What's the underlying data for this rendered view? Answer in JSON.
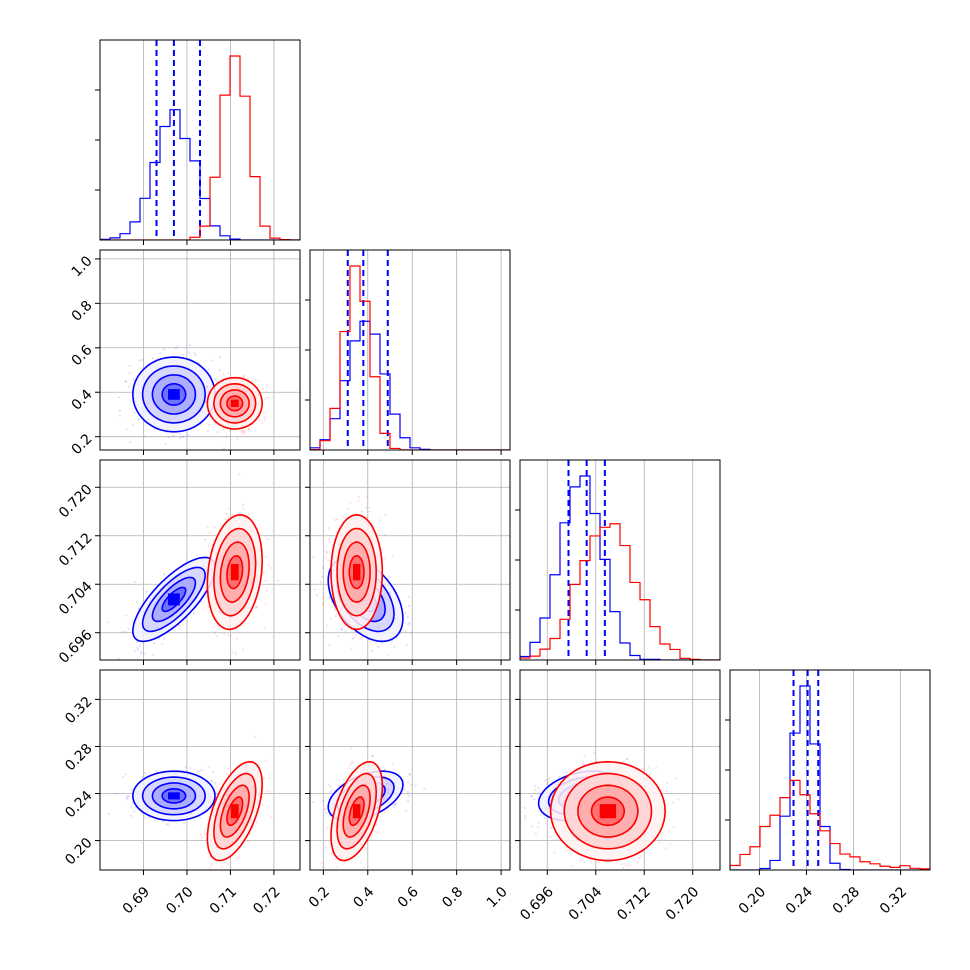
{
  "colors": {
    "series_a": "#0000ff",
    "series_b": "#ff0000",
    "grid": "#b0b0b0"
  },
  "chart_data": {
    "type": "corner",
    "title": "",
    "grid": true,
    "params": [
      {
        "xlim": [
          0.68,
          0.726
        ],
        "ticks": [
          0.69,
          0.7,
          0.71,
          0.72
        ],
        "tick_labels": [
          "0.69",
          "0.70",
          "0.71",
          "0.72"
        ]
      },
      {
        "xlim": [
          0.14,
          1.04
        ],
        "ticks": [
          0.2,
          0.4,
          0.6,
          0.8,
          1.0
        ],
        "tick_labels": [
          "0.2",
          "0.4",
          "0.6",
          "0.8",
          "1.0"
        ]
      },
      {
        "xlim": [
          0.6915,
          0.7245
        ],
        "ticks": [
          0.696,
          0.704,
          0.712,
          0.72
        ],
        "tick_labels": [
          "0.696",
          "0.704",
          "0.712",
          "0.720"
        ]
      },
      {
        "xlim": [
          0.175,
          0.345
        ],
        "ticks": [
          0.2,
          0.24,
          0.28,
          0.32
        ],
        "tick_labels": [
          "0.20",
          "0.24",
          "0.28",
          "0.32"
        ]
      }
    ],
    "series": [
      {
        "name": "",
        "color": "#0000ff",
        "mean": [
          0.697,
          0.39,
          0.7015,
          0.238
        ],
        "sd": [
          0.0045,
          0.08,
          0.0033,
          0.01
        ],
        "corr": [
          [
            1,
            0,
            0.75,
            0
          ],
          [
            0,
            1,
            -0.45,
            0.45
          ],
          [
            0.75,
            -0.45,
            1,
            0.3
          ],
          [
            0,
            0.45,
            0.3,
            1
          ]
        ],
        "quantiles": [
          [
            0.693,
            0.697,
            0.703
          ],
          [
            0.31,
            0.38,
            0.49
          ],
          [
            0.6995,
            0.7025,
            0.7055
          ],
          [
            0.229,
            0.241,
            0.25
          ]
        ]
      },
      {
        "name": "",
        "color": "#ff0000",
        "mean": [
          0.711,
          0.35,
          0.706,
          0.225
        ],
        "sd": [
          0.003,
          0.055,
          0.0045,
          0.02
        ],
        "corr": [
          [
            1,
            0,
            0.2,
            0.55
          ],
          [
            0,
            1,
            0,
            0.5
          ],
          [
            0.2,
            0,
            1,
            0
          ],
          [
            0.55,
            0.5,
            0,
            1
          ]
        ],
        "quantiles": []
      }
    ]
  }
}
